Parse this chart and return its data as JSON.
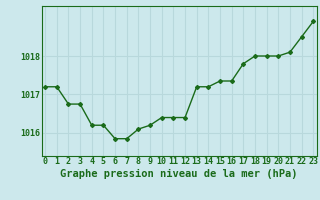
{
  "x": [
    0,
    1,
    2,
    3,
    4,
    5,
    6,
    7,
    8,
    9,
    10,
    11,
    12,
    13,
    14,
    15,
    16,
    17,
    18,
    19,
    20,
    21,
    22,
    23
  ],
  "y": [
    1017.2,
    1017.2,
    1016.75,
    1016.75,
    1016.2,
    1016.2,
    1015.85,
    1015.85,
    1016.1,
    1016.2,
    1016.4,
    1016.4,
    1016.4,
    1017.2,
    1017.2,
    1017.35,
    1017.35,
    1017.8,
    1018.0,
    1018.0,
    1018.0,
    1018.1,
    1018.5,
    1018.9
  ],
  "bg_color": "#cce8ec",
  "grid_color": "#b8d8dc",
  "line_color": "#1a6b1a",
  "marker_color": "#1a6b1a",
  "title": "Graphe pression niveau de la mer (hPa)",
  "yticks": [
    1016,
    1017,
    1018
  ],
  "ylim": [
    1015.4,
    1019.3
  ],
  "xlim": [
    -0.3,
    23.3
  ],
  "title_fontsize": 7.5,
  "tick_fontsize": 6,
  "axis_color": "#1a6b1a"
}
